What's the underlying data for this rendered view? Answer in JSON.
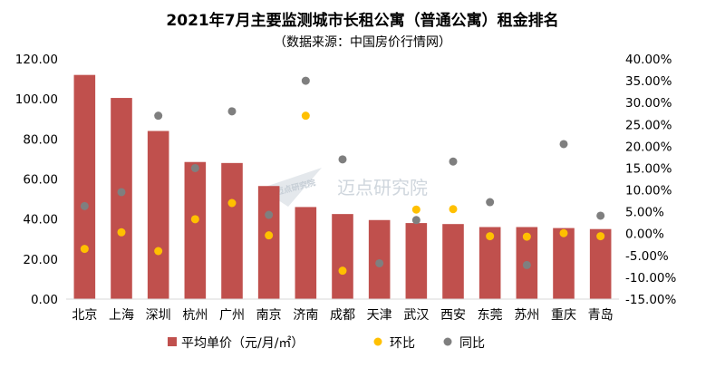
{
  "chart_data": {
    "type": "bar+scatter",
    "title": "2021年7月主要监测城市长租公寓（普通公寓）租金排名",
    "subtitle": "（数据来源：中国房价行情网）",
    "categories": [
      "北京",
      "上海",
      "深圳",
      "杭州",
      "广州",
      "南京",
      "济南",
      "成都",
      "天津",
      "武汉",
      "西安",
      "东莞",
      "苏州",
      "重庆",
      "青岛"
    ],
    "series": [
      {
        "name": "平均单价（元/月/㎡）",
        "kind": "bar",
        "axis": "left",
        "color": "#c0504d",
        "values": [
          112.0,
          100.5,
          84.0,
          68.5,
          68.0,
          56.5,
          46.0,
          42.5,
          39.5,
          38.0,
          37.5,
          36.0,
          36.0,
          35.5,
          35.0
        ]
      },
      {
        "name": "环比",
        "kind": "scatter",
        "axis": "right",
        "color": "#ffc000",
        "values": [
          -3.5,
          0.3,
          -4.0,
          3.3,
          7.0,
          -0.4,
          27.0,
          -8.5,
          null,
          5.5,
          5.6,
          -0.6,
          -0.7,
          0.1,
          -0.6
        ]
      },
      {
        "name": "同比",
        "kind": "scatter",
        "axis": "right",
        "color": "#7f7f7f",
        "values": [
          6.3,
          9.5,
          27.0,
          15.0,
          28.0,
          4.3,
          35.0,
          17.0,
          -6.8,
          3.1,
          16.5,
          7.2,
          -7.2,
          20.5,
          4.1
        ]
      }
    ],
    "left_axis": {
      "min": 0,
      "max": 120,
      "step": 20,
      "tick_labels": [
        "0.00",
        "20.00",
        "40.00",
        "60.00",
        "80.00",
        "100.00",
        "120.00"
      ]
    },
    "right_axis": {
      "min": -15,
      "max": 40,
      "step": 5,
      "tick_labels": [
        "-15.00%",
        "-10.00%",
        "-5.00%",
        "0.00%",
        "5.00%",
        "10.00%",
        "15.00%",
        "20.00%",
        "25.00%",
        "30.00%",
        "35.00%",
        "40.00%"
      ]
    },
    "legend": {
      "position": "bottom",
      "labels": [
        "平均单价（元/月/㎡）",
        "环比",
        "同比"
      ]
    }
  },
  "watermark": {
    "text": "迈点研究院",
    "small_text": "迈点研究院"
  }
}
